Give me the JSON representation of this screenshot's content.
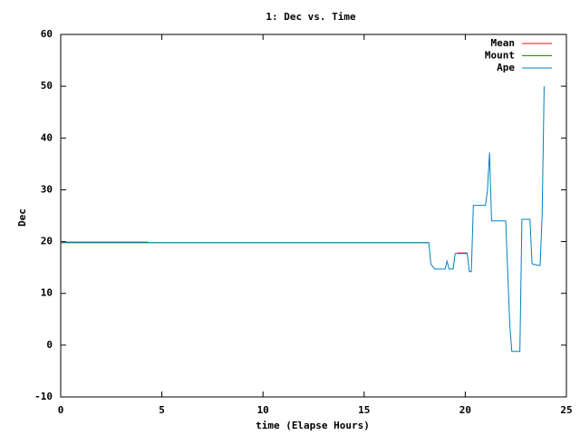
{
  "chart_data": {
    "type": "line",
    "title": "1: Dec vs. Time",
    "xlabel": "time (Elapse Hours)",
    "ylabel": "Dec",
    "xlim": [
      0,
      25
    ],
    "xticks": [
      0,
      5,
      10,
      15,
      20,
      25
    ],
    "ylim": [
      -10,
      60
    ],
    "yticks": [
      -10,
      0,
      10,
      20,
      30,
      40,
      50,
      60
    ],
    "legend": "top-right",
    "series": [
      {
        "name": "Mean",
        "color": "#ff0000",
        "x": [
          0,
          4.3,
          19.6,
          19.6,
          20.1
        ],
        "values": [
          19.9,
          19.9,
          null,
          17.8,
          17.8
        ]
      },
      {
        "name": "Mount",
        "color": "#00a000",
        "x": [
          0,
          18.2
        ],
        "values": [
          19.8,
          19.8
        ]
      },
      {
        "name": "Ape",
        "color": "#0080c0",
        "x": [
          0,
          18.2,
          18.3,
          18.5,
          19.0,
          19.1,
          19.2,
          19.4,
          19.5,
          20.1,
          20.2,
          20.3,
          20.4,
          21.0,
          21.1,
          21.2,
          21.3,
          22.0,
          22.2,
          22.3,
          22.7,
          22.8,
          23.2,
          23.3,
          23.6,
          23.7,
          23.8,
          23.9
        ],
        "values": [
          19.8,
          19.8,
          15.6,
          14.7,
          14.7,
          16.2,
          14.7,
          14.7,
          17.7,
          17.7,
          14.2,
          14.2,
          27,
          27,
          30,
          37.2,
          24,
          24,
          4,
          -1.2,
          -1.2,
          24.3,
          24.3,
          15.7,
          15.4,
          15.4,
          25,
          50
        ]
      }
    ]
  }
}
